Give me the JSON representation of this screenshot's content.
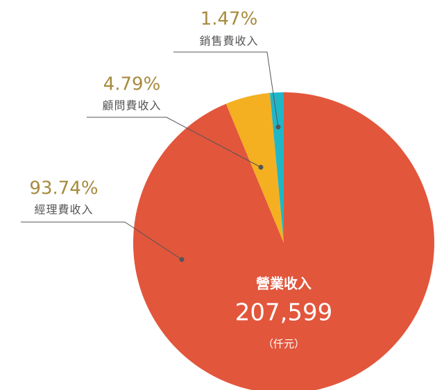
{
  "chart_data": {
    "type": "pie",
    "categories": [
      "經理費收入",
      "顧問費收入",
      "銷售費收入"
    ],
    "values": [
      93.74,
      4.79,
      1.47
    ],
    "value_labels": [
      "93.74%",
      "4.79%",
      "1.47%"
    ],
    "colors": [
      "#e2563c",
      "#f4b020",
      "#20b6c7"
    ],
    "center_title": "營業收入",
    "center_value": "207,599",
    "center_unit": "（仟元）"
  }
}
